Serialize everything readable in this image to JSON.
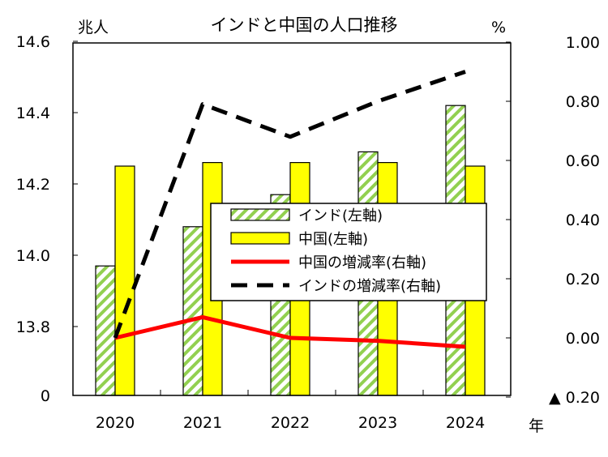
{
  "chart_data": {
    "type": "bar",
    "title": "インドと中国の人口推移",
    "ylabel_left": "兆人",
    "ylabel_right": "%",
    "xlabel": "年",
    "categories": [
      "2020",
      "2021",
      "2022",
      "2023",
      "2024"
    ],
    "left_axis": {
      "ylim": [
        13.7,
        14.6
      ],
      "break_label": "0",
      "ticks": [
        13.8,
        14.0,
        14.2,
        14.4,
        14.6
      ],
      "tick_labels": [
        "13.8",
        "14.0",
        "14.2",
        "14.4",
        "14.6"
      ]
    },
    "right_axis": {
      "ylim": [
        -0.2,
        1.0
      ],
      "ticks": [
        -0.2,
        0.0,
        0.2,
        0.4,
        0.6,
        0.8,
        1.0
      ],
      "tick_labels": [
        "▲ 0.20",
        "0.00",
        "0.20",
        "0.40",
        "0.60",
        "0.80",
        "1.00"
      ]
    },
    "series": [
      {
        "name": "インド(左軸)",
        "kind": "bar",
        "axis": "left",
        "pattern": "hatch",
        "color": "#92d050",
        "values": [
          13.97,
          14.08,
          14.17,
          14.29,
          14.42
        ]
      },
      {
        "name": "中国(左軸)",
        "kind": "bar",
        "axis": "left",
        "color": "#ffff00",
        "values": [
          14.25,
          14.26,
          14.26,
          14.26,
          14.25
        ]
      },
      {
        "name": "中国の増減率(右軸)",
        "kind": "line",
        "axis": "right",
        "color": "#ff0000",
        "values": [
          0.0,
          0.07,
          0.0,
          -0.01,
          -0.03
        ]
      },
      {
        "name": "インドの増減率(右軸)",
        "kind": "line",
        "axis": "right",
        "dashed": true,
        "color": "#000000",
        "values": [
          0.0,
          0.79,
          0.68,
          0.8,
          0.9
        ]
      }
    ],
    "legend_position": "center-right"
  }
}
